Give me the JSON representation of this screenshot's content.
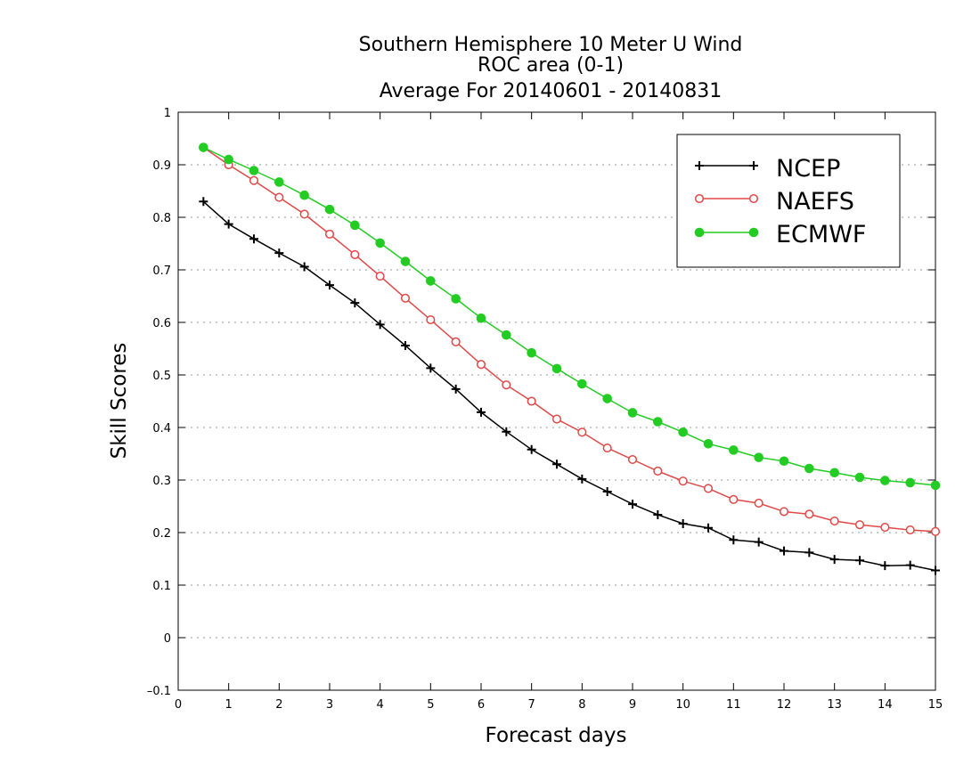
{
  "chart_data": {
    "type": "line",
    "title_lines": [
      "Southern Hemisphere 10 Meter U Wind",
      "ROC area (0-1)",
      "Average For 20140601 - 20140831"
    ],
    "xlabel": "Forecast days",
    "ylabel": "Skill Scores",
    "xlim": [
      0,
      15
    ],
    "ylim": [
      -0.1,
      1
    ],
    "xticks": [
      "0",
      "1",
      "2",
      "3",
      "4",
      "5",
      "6",
      "7",
      "8",
      "9",
      "10",
      "11",
      "12",
      "13",
      "14",
      "15"
    ],
    "yticks": [
      "–0.1",
      "0",
      "0.1",
      "0.2",
      "0.3",
      "0.4",
      "0.5",
      "0.6",
      "0.7",
      "0.8",
      "0.9",
      "1"
    ],
    "ytick_values": [
      -0.1,
      0,
      0.1,
      0.2,
      0.3,
      0.4,
      0.5,
      0.6,
      0.7,
      0.8,
      0.9,
      1
    ],
    "grid": "horizontal dotted",
    "legend_position": "top-right",
    "x": [
      0.5,
      1,
      1.5,
      2,
      2.5,
      3,
      3.5,
      4,
      4.5,
      5,
      5.5,
      6,
      6.5,
      7,
      7.5,
      8,
      8.5,
      9,
      9.5,
      10,
      10.5,
      11,
      11.5,
      12,
      12.5,
      13,
      13.5,
      14,
      14.5,
      15
    ],
    "series": [
      {
        "name": "NCEP",
        "color": "#000000",
        "marker": "plus",
        "values": [
          0.83,
          0.787,
          0.759,
          0.732,
          0.706,
          0.671,
          0.637,
          0.596,
          0.556,
          0.513,
          0.473,
          0.429,
          0.392,
          0.358,
          0.33,
          0.302,
          0.278,
          0.254,
          0.234,
          0.217,
          0.209,
          0.186,
          0.182,
          0.165,
          0.162,
          0.149,
          0.147,
          0.137,
          0.138,
          0.128
        ]
      },
      {
        "name": "NAEFS",
        "color": "#e04848",
        "marker": "open-circle",
        "values": [
          0.933,
          0.9,
          0.87,
          0.838,
          0.806,
          0.768,
          0.729,
          0.688,
          0.646,
          0.605,
          0.563,
          0.52,
          0.481,
          0.45,
          0.416,
          0.391,
          0.361,
          0.339,
          0.317,
          0.298,
          0.284,
          0.263,
          0.256,
          0.24,
          0.235,
          0.222,
          0.215,
          0.21,
          0.205,
          0.202
        ]
      },
      {
        "name": "ECMWF",
        "color": "#22cc22",
        "marker": "filled-circle",
        "values": [
          0.933,
          0.91,
          0.889,
          0.867,
          0.842,
          0.815,
          0.785,
          0.751,
          0.716,
          0.679,
          0.645,
          0.608,
          0.576,
          0.542,
          0.512,
          0.483,
          0.455,
          0.428,
          0.411,
          0.391,
          0.369,
          0.357,
          0.343,
          0.336,
          0.322,
          0.314,
          0.305,
          0.299,
          0.295,
          0.29
        ]
      }
    ]
  }
}
